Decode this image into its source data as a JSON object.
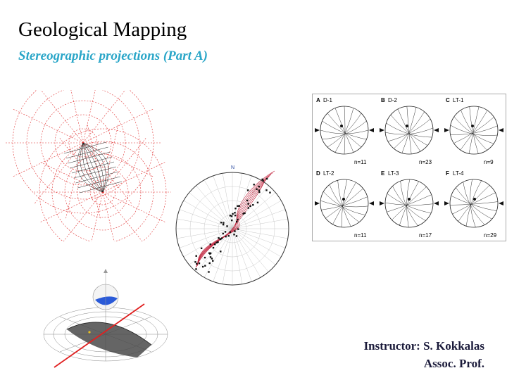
{
  "slide": {
    "title": "Geological Mapping",
    "subtitle": "Stereographic projections (Part A)",
    "instructor": "Instructor: S. Kokkalas",
    "position": "Assoc. Prof."
  },
  "figures": {
    "contour_plot": {
      "north_label": "N"
    },
    "panels": [
      {
        "letter": "A",
        "site": "D-1",
        "n": "n=11"
      },
      {
        "letter": "B",
        "site": "D-2",
        "n": "n=23"
      },
      {
        "letter": "C",
        "site": "LT-1",
        "n": "n=9"
      },
      {
        "letter": "D",
        "site": "LT-2",
        "n": "n=11"
      },
      {
        "letter": "E",
        "site": "LT-3",
        "n": "n=17"
      },
      {
        "letter": "F",
        "site": "LT-4",
        "n": "n=29"
      }
    ]
  },
  "colors": {
    "subtitle": "#2aa6c8",
    "net_red": "#e03030",
    "contour": "#c0203a",
    "plane_gray": "#555555"
  }
}
